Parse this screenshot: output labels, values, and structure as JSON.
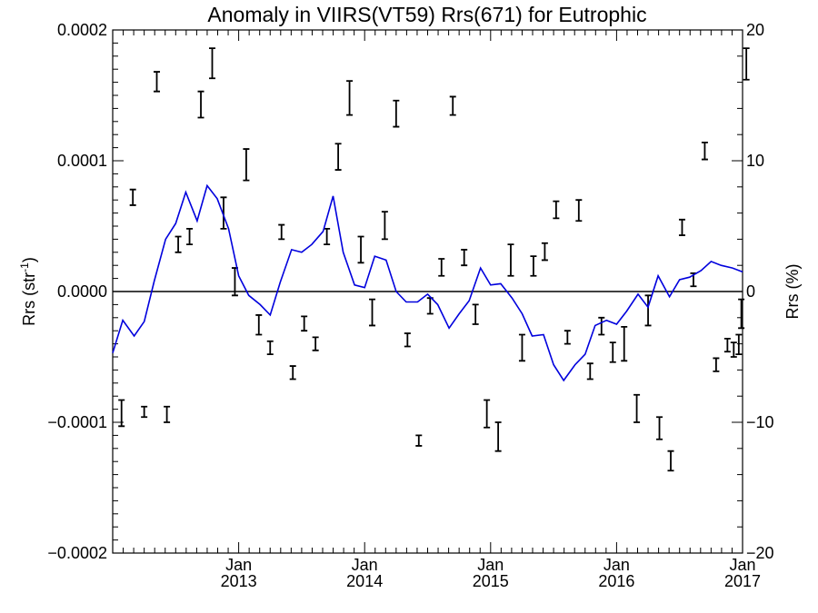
{
  "chart_data": {
    "type": "line",
    "title": "Anomaly in VIIRS(VT59) Rrs(671) for Eutrophic",
    "ylabel_left": "Rrs (str",
    "ylabel_left_sup": "-1",
    "ylabel_left_close": ")",
    "ylabel_right": "Rrs (%)",
    "xlim": [
      2012.0,
      2017.0
    ],
    "ylim_left": [
      -0.0002,
      0.0002
    ],
    "ylim_right": [
      -20,
      20
    ],
    "y_ticks_left": [
      {
        "v": 0.0002,
        "label": "0.0002"
      },
      {
        "v": 0.0001,
        "label": "0.0001"
      },
      {
        "v": 0.0,
        "label": "0.0000"
      },
      {
        "v": -0.0001,
        "label": "−0.0001"
      },
      {
        "v": -0.0002,
        "label": "−0.0002"
      }
    ],
    "y_ticks_right": [
      {
        "v": 20,
        "label": "20"
      },
      {
        "v": 10,
        "label": "10"
      },
      {
        "v": 0,
        "label": "0"
      },
      {
        "v": -10,
        "label": "−10"
      },
      {
        "v": -20,
        "label": "−20"
      }
    ],
    "x_ticks": [
      {
        "x": 2013.0,
        "month": "Jan",
        "year": "2013"
      },
      {
        "x": 2014.0,
        "month": "Jan",
        "year": "2014"
      },
      {
        "x": 2015.0,
        "month": "Jan",
        "year": "2015"
      },
      {
        "x": 2016.0,
        "month": "Jan",
        "year": "2016"
      },
      {
        "x": 2017.0,
        "month": "Jan",
        "year": "2017"
      }
    ],
    "error_bars": {
      "color": "#000000",
      "points": [
        [
          2012.07,
          -0.000103,
          -8.3e-05
        ],
        [
          2012.16,
          6.6e-05,
          7.8e-05
        ],
        [
          2012.25,
          -9.6e-05,
          -8.8e-05
        ],
        [
          2012.35,
          0.000153,
          0.000168
        ],
        [
          2012.43,
          -0.0001,
          -8.8e-05
        ],
        [
          2012.52,
          3e-05,
          4.2e-05
        ],
        [
          2012.61,
          3.6e-05,
          4.8e-05
        ],
        [
          2012.7,
          0.000133,
          0.000153
        ],
        [
          2012.79,
          0.000163,
          0.000186
        ],
        [
          2012.88,
          4.8e-05,
          7.2e-05
        ],
        [
          2012.97,
          -3e-06,
          1.8e-05
        ],
        [
          2013.06,
          8.5e-05,
          0.000109
        ],
        [
          2013.16,
          -3.3e-05,
          -1.8e-05
        ],
        [
          2013.25,
          -4.8e-05,
          -3.8e-05
        ],
        [
          2013.34,
          4e-05,
          5.1e-05
        ],
        [
          2013.43,
          -6.7e-05,
          -5.7e-05
        ],
        [
          2013.52,
          -3e-05,
          -1.9e-05
        ],
        [
          2013.61,
          -4.5e-05,
          -3.5e-05
        ],
        [
          2013.7,
          3.6e-05,
          4.8e-05
        ],
        [
          2013.79,
          9.3e-05,
          0.000113
        ],
        [
          2013.88,
          0.000135,
          0.000161
        ],
        [
          2013.97,
          2.2e-05,
          4.2e-05
        ],
        [
          2014.06,
          -2.6e-05,
          -6e-06
        ],
        [
          2014.16,
          4e-05,
          6.1e-05
        ],
        [
          2014.25,
          0.000126,
          0.000146
        ],
        [
          2014.34,
          -4.2e-05,
          -3.2e-05
        ],
        [
          2014.43,
          -0.000118,
          -0.00011
        ],
        [
          2014.52,
          -1.7e-05,
          -5e-06
        ],
        [
          2014.61,
          1.2e-05,
          2.5e-05
        ],
        [
          2014.7,
          0.000135,
          0.000149
        ],
        [
          2014.79,
          2e-05,
          3.2e-05
        ],
        [
          2014.88,
          -2.5e-05,
          -1e-05
        ],
        [
          2014.97,
          -0.000104,
          -8.3e-05
        ],
        [
          2015.06,
          -0.000122,
          -0.0001
        ],
        [
          2015.16,
          1.2e-05,
          3.6e-05
        ],
        [
          2015.25,
          -5.3e-05,
          -3.3e-05
        ],
        [
          2015.34,
          1.2e-05,
          2.7e-05
        ],
        [
          2015.43,
          2.4e-05,
          3.7e-05
        ],
        [
          2015.52,
          5.6e-05,
          6.9e-05
        ],
        [
          2015.61,
          -4e-05,
          -3e-05
        ],
        [
          2015.7,
          5.4e-05,
          7e-05
        ],
        [
          2015.79,
          -6.7e-05,
          -5.5e-05
        ],
        [
          2015.88,
          -3.3e-05,
          -2e-05
        ],
        [
          2015.97,
          -5.4e-05,
          -3.9e-05
        ],
        [
          2016.06,
          -5.3e-05,
          -2.7e-05
        ],
        [
          2016.16,
          -0.0001,
          -7.9e-05
        ],
        [
          2016.25,
          -2.6e-05,
          -3e-06
        ],
        [
          2016.34,
          -0.000113,
          -9.6e-05
        ],
        [
          2016.43,
          -0.000137,
          -0.000122
        ],
        [
          2016.52,
          4.3e-05,
          5.5e-05
        ],
        [
          2016.61,
          4e-06,
          1.4e-05
        ],
        [
          2016.7,
          0.000101,
          0.000114
        ],
        [
          2016.79,
          -6.1e-05,
          -5.1e-05
        ],
        [
          2016.88,
          -4.6e-05,
          -3.6e-05
        ],
        [
          2016.93,
          -5e-05,
          -3.9e-05
        ],
        [
          2016.97,
          -4.8e-05,
          -3.3e-05
        ],
        [
          2016.99,
          -2.8e-05,
          -6e-06
        ],
        [
          2017.03,
          0.000162,
          0.000186
        ]
      ]
    },
    "series": [
      {
        "color": "#0000dd",
        "axis": "right",
        "x": [
          2012.0,
          2012.08,
          2012.17,
          2012.25,
          2012.33,
          2012.42,
          2012.5,
          2012.58,
          2012.67,
          2012.75,
          2012.83,
          2012.92,
          2013.0,
          2013.08,
          2013.17,
          2013.25,
          2013.33,
          2013.42,
          2013.5,
          2013.58,
          2013.67,
          2013.75,
          2013.83,
          2013.92,
          2014.0,
          2014.08,
          2014.17,
          2014.25,
          2014.33,
          2014.42,
          2014.5,
          2014.58,
          2014.67,
          2014.75,
          2014.83,
          2014.92,
          2015.0,
          2015.08,
          2015.17,
          2015.25,
          2015.33,
          2015.42,
          2015.5,
          2015.58,
          2015.67,
          2015.75,
          2015.83,
          2015.92,
          2016.0,
          2016.08,
          2016.17,
          2016.25,
          2016.33,
          2016.42,
          2016.5,
          2016.58,
          2016.67,
          2016.75,
          2016.83,
          2016.92,
          2017.0
        ],
        "y": [
          -4.7,
          -2.2,
          -3.4,
          -2.3,
          0.8,
          4.0,
          5.2,
          7.6,
          5.4,
          8.1,
          7.1,
          4.8,
          1.2,
          -0.3,
          -1.0,
          -1.8,
          0.7,
          3.2,
          3.0,
          3.6,
          4.6,
          7.3,
          3.0,
          0.5,
          0.3,
          2.7,
          2.4,
          0.0,
          -0.8,
          -0.8,
          -0.2,
          -1.0,
          -2.8,
          -1.7,
          -0.7,
          1.8,
          0.5,
          0.6,
          -0.5,
          -1.7,
          -3.4,
          -3.3,
          -5.6,
          -6.8,
          -5.6,
          -4.8,
          -2.6,
          -2.2,
          -2.5,
          -1.5,
          -0.2,
          -1.2,
          1.2,
          -0.4,
          0.9,
          1.1,
          1.6,
          2.3,
          2.0,
          1.8,
          1.5
        ]
      }
    ]
  }
}
